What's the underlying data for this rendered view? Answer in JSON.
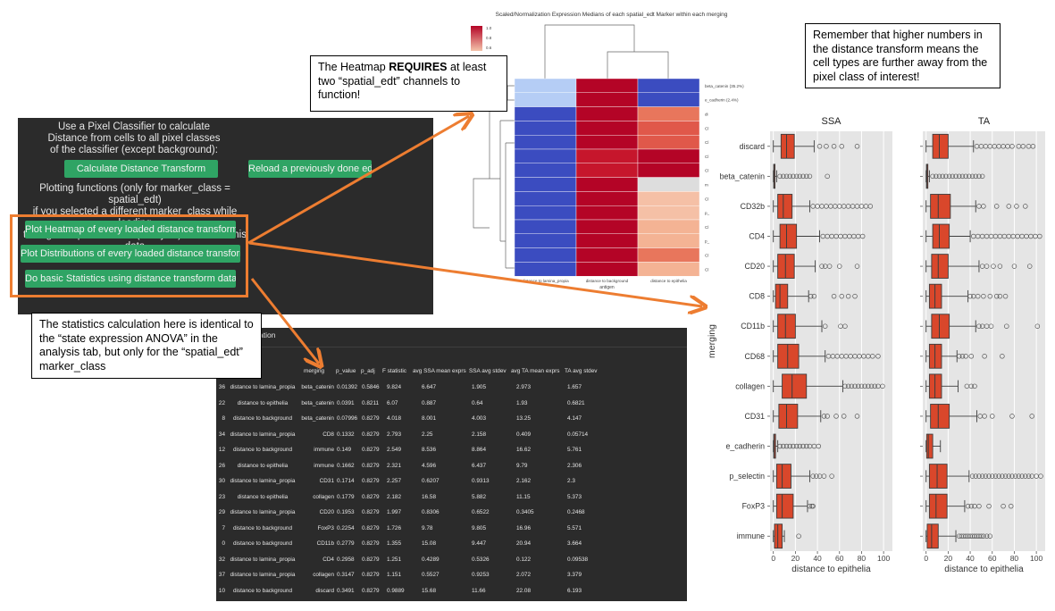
{
  "panel": {
    "intro_lines": [
      "Use a Pixel Classifier to calculate",
      "Distance from cells to all pixel classes",
      "of the classifier (except background):"
    ],
    "calc_button": "Calculate Distance Transform",
    "reload_button": "Reload a previously done edt",
    "plot_lines": [
      "Plotting functions (only for marker_class = spatial_edt)",
      "if you selected a different marker_class while loading",
      "then go the previous tab (Analysis) to access this data"
    ],
    "heatmap_button": "Plot Heatmap of every loaded distance transform",
    "distributions_button": "Plot Distributions of every loaded distance transform",
    "stats_button": "Do basic Statistics using distance transform data"
  },
  "callouts": {
    "heatmap_pre": "The Heatmap ",
    "heatmap_bold": "REQUIRES",
    "heatmap_post": " at least two “spatial_edt” channels to function!",
    "stats": "The statistics calculation here is identical to the “state expression ANOVA” in the analysis tab, but only for the “spatial_edt” marker_class",
    "remember": "Remember that higher numbers in the distance transform means the cell types are further away from the pixel class of interest!"
  },
  "heatmap": {
    "title": "Scaled/Normalization Expression Medians of each spatial_edt Marker within each merging",
    "colorbar_ticks": [
      "1.0",
      "0.8",
      "0.6"
    ],
    "columns": [
      "distance to lamina_propia",
      "distance to background",
      "distance to epithelia"
    ],
    "xlabel": "antigen",
    "row_labels": [
      "beta_catenin (35.2%)",
      "e_cadherin (2.4%)",
      "di",
      "Cl",
      "Cl",
      "Cl",
      "Cl",
      "m",
      "Cl",
      "p_",
      "Cl",
      "p_",
      "Cl",
      "Cl"
    ],
    "colors": [
      [
        "#b5cdf5",
        "#b40426",
        "#3b4cc0"
      ],
      [
        "#b5cdf5",
        "#b40426",
        "#3b4cc0"
      ],
      [
        "#3b4cc0",
        "#b40426",
        "#e8765c"
      ],
      [
        "#3b4cc0",
        "#b40426",
        "#e0584a"
      ],
      [
        "#3b4cc0",
        "#b40426",
        "#e0584a"
      ],
      [
        "#3b4cc0",
        "#c6162c",
        "#b40426"
      ],
      [
        "#3b4cc0",
        "#c6162c",
        "#b40426"
      ],
      [
        "#3b4cc0",
        "#b40426",
        "#dddddd"
      ],
      [
        "#3b4cc0",
        "#b40426",
        "#f5c0a6"
      ],
      [
        "#3b4cc0",
        "#b40426",
        "#f5c0a6"
      ],
      [
        "#3b4cc0",
        "#b40426",
        "#f4b394"
      ],
      [
        "#3b4cc0",
        "#b40426",
        "#f4b394"
      ],
      [
        "#3b4cc0",
        "#b40426",
        "#e8765c"
      ],
      [
        "#3b4cc0",
        "#b40426",
        "#f4b394"
      ]
    ]
  },
  "stats_panel": {
    "tab_label": "ation",
    "headers": [
      "n",
      "merging",
      "p_value",
      "p_adj",
      "F statistic",
      "avg SSA mean exprs",
      "SSA avg stdev",
      "avg TA mean exprs",
      "TA avg stdev"
    ],
    "rows": [
      [
        "36",
        "distance to lamina_propia",
        "beta_catenin",
        "0.01392",
        "0.5846",
        "9.824",
        "6.647",
        "1.905",
        "2.973",
        "1.657"
      ],
      [
        "22",
        "distance to epithelia",
        "beta_catenin",
        "0.0391",
        "0.8211",
        "6.07",
        "0.887",
        "0.64",
        "1.93",
        "0.6821"
      ],
      [
        "8",
        "distance to background",
        "beta_catenin",
        "0.07996",
        "0.8279",
        "4.018",
        "8.001",
        "4.003",
        "13.25",
        "4.147"
      ],
      [
        "34",
        "distance to lamina_propia",
        "CD8",
        "0.1332",
        "0.8279",
        "2.793",
        "2.25",
        "2.158",
        "0.409",
        "0.05714"
      ],
      [
        "12",
        "distance to background",
        "immune",
        "0.149",
        "0.8279",
        "2.549",
        "8.536",
        "8.864",
        "16.62",
        "5.761"
      ],
      [
        "26",
        "distance to epithelia",
        "immune",
        "0.1662",
        "0.8279",
        "2.321",
        "4.596",
        "6.437",
        "9.79",
        "2.306"
      ],
      [
        "30",
        "distance to lamina_propia",
        "CD31",
        "0.1714",
        "0.8279",
        "2.257",
        "0.6207",
        "0.9313",
        "2.162",
        "2.3"
      ],
      [
        "23",
        "distance to epithelia",
        "collagen",
        "0.1779",
        "0.8279",
        "2.182",
        "16.58",
        "5.882",
        "11.15",
        "5.373"
      ],
      [
        "29",
        "distance to lamina_propia",
        "CD20",
        "0.1953",
        "0.8279",
        "1.997",
        "0.8306",
        "0.6522",
        "0.3405",
        "0.2468"
      ],
      [
        "7",
        "distance to background",
        "FoxP3",
        "0.2254",
        "0.8279",
        "1.726",
        "9.78",
        "9.805",
        "16.96",
        "5.571"
      ],
      [
        "0",
        "distance to background",
        "CD11b",
        "0.2779",
        "0.8279",
        "1.355",
        "15.08",
        "9.447",
        "20.94",
        "3.664"
      ],
      [
        "32",
        "distance to lamina_propia",
        "CD4",
        "0.2958",
        "0.8279",
        "1.251",
        "0.4289",
        "0.5326",
        "0.122",
        "0.09538"
      ],
      [
        "37",
        "distance to lamina_propia",
        "collagen",
        "0.3147",
        "0.8279",
        "1.151",
        "0.5527",
        "0.9253",
        "2.072",
        "3.379"
      ],
      [
        "10",
        "distance to background",
        "discard",
        "0.3491",
        "0.8279",
        "0.9889",
        "15.68",
        "11.66",
        "22.08",
        "6.193"
      ]
    ]
  },
  "chart_data": {
    "type": "boxplot",
    "ylabel": "merging",
    "categories": [
      "discard",
      "beta_catenin",
      "CD32b",
      "CD4",
      "CD20",
      "CD8",
      "CD11b",
      "CD68",
      "collagen",
      "CD31",
      "e_cadherin",
      "p_selectin",
      "FoxP3",
      "immune"
    ],
    "xticks": [
      0,
      20,
      40,
      60,
      80,
      100
    ],
    "xlim": [
      -3,
      108
    ],
    "grid": true,
    "panels": [
      {
        "title": "SSA",
        "xlabel": "distance to epithelia",
        "boxes": [
          {
            "lw": 0,
            "q1": 7,
            "median": 12,
            "q3": 19,
            "uw": 37,
            "outliers": [
              42,
              48,
              55,
              62,
              76
            ]
          },
          {
            "lw": 0,
            "q1": 0.3,
            "median": 0.6,
            "q3": 1.5,
            "uw": 3,
            "outliers": [
              6,
              9,
              12,
              15,
              18,
              21,
              24,
              27,
              30,
              33,
              49
            ]
          },
          {
            "lw": 0,
            "q1": 4,
            "median": 9,
            "q3": 17,
            "uw": 33,
            "outliers": [
              36,
              40,
              44,
              48,
              52,
              56,
              60,
              64,
              68,
              72,
              76,
              80,
              84,
              88
            ]
          },
          {
            "lw": 0,
            "q1": 6,
            "median": 12,
            "q3": 21,
            "uw": 42,
            "outliers": [
              45,
              49,
              53,
              57,
              61,
              65,
              69,
              73,
              77,
              81
            ]
          },
          {
            "lw": 0,
            "q1": 4,
            "median": 11,
            "q3": 19,
            "uw": 38,
            "outliers": [
              44,
              47,
              51,
              60,
              76
            ]
          },
          {
            "lw": 0,
            "q1": 2,
            "median": 6,
            "q3": 13,
            "uw": 32,
            "outliers": [
              34,
              37,
              55,
              62,
              68,
              74
            ]
          },
          {
            "lw": 0,
            "q1": 4,
            "median": 11,
            "q3": 20,
            "uw": 44,
            "outliers": [
              47,
              61,
              65
            ]
          },
          {
            "lw": 0,
            "q1": 4,
            "median": 13,
            "q3": 23,
            "uw": 47,
            "outliers": [
              50,
              54,
              58,
              62,
              66,
              70,
              74,
              78,
              82,
              86,
              90,
              95
            ]
          },
          {
            "lw": 0,
            "q1": 8,
            "median": 17,
            "q3": 30,
            "uw": 63,
            "outliers": [
              65,
              68,
              71,
              74,
              77,
              80,
              83,
              86,
              89,
              92,
              95,
              99
            ]
          },
          {
            "lw": 0,
            "q1": 5,
            "median": 12,
            "q3": 22,
            "uw": 43,
            "outliers": [
              46,
              49,
              57,
              64,
              76
            ]
          },
          {
            "lw": 0,
            "q1": 0.3,
            "median": 0.8,
            "q3": 2,
            "uw": 4,
            "outliers": [
              6,
              9,
              12,
              15,
              18,
              21,
              24,
              27,
              30,
              33,
              37,
              41
            ]
          },
          {
            "lw": 0,
            "q1": 3,
            "median": 8,
            "q3": 16,
            "uw": 33,
            "outliers": [
              36,
              39,
              42,
              46,
              53
            ]
          },
          {
            "lw": 0,
            "q1": 3,
            "median": 8,
            "q3": 18,
            "uw": 31,
            "outliers": [
              33,
              35,
              36
            ]
          },
          {
            "lw": 0,
            "q1": 1,
            "median": 4,
            "q3": 8,
            "uw": 10,
            "outliers": [
              23
            ]
          }
        ]
      },
      {
        "title": "TA",
        "xlabel": "distance to epithelia",
        "boxes": [
          {
            "lw": 0,
            "q1": 6,
            "median": 12,
            "q3": 20,
            "uw": 43,
            "outliers": [
              46,
              50,
              54,
              58,
              62,
              66,
              70,
              74,
              78,
              84,
              88,
              93,
              97
            ]
          },
          {
            "lw": 0,
            "q1": 0.3,
            "median": 0.7,
            "q3": 1.6,
            "uw": 3,
            "outliers": [
              6,
              9,
              12,
              15,
              18,
              21,
              24,
              27,
              30,
              33,
              36,
              39,
              42,
              45,
              48,
              51
            ]
          },
          {
            "lw": 0,
            "q1": 4,
            "median": 11,
            "q3": 22,
            "uw": 45,
            "outliers": [
              48,
              52,
              64,
              75,
              82,
              90
            ]
          },
          {
            "lw": 0,
            "q1": 6,
            "median": 12,
            "q3": 21,
            "uw": 40,
            "outliers": [
              43,
              47,
              51,
              55,
              59,
              63,
              67,
              71,
              75,
              79,
              83,
              87,
              91,
              95,
              99,
              103
            ]
          },
          {
            "lw": 0,
            "q1": 5,
            "median": 11,
            "q3": 20,
            "uw": 48,
            "outliers": [
              51,
              55,
              61,
              67,
              80,
              94
            ]
          },
          {
            "lw": 0,
            "q1": 3,
            "median": 8,
            "q3": 14,
            "uw": 38,
            "outliers": [
              40,
              43,
              47,
              52,
              58,
              64,
              67,
              72
            ]
          },
          {
            "lw": 0,
            "q1": 5,
            "median": 12,
            "q3": 21,
            "uw": 45,
            "outliers": [
              48,
              51,
              55,
              59,
              73,
              101
            ]
          },
          {
            "lw": 0,
            "q1": 3,
            "median": 8,
            "q3": 14,
            "uw": 28,
            "outliers": [
              30,
              33,
              36,
              41,
              53,
              69
            ]
          },
          {
            "lw": 0,
            "q1": 3,
            "median": 8,
            "q3": 14,
            "uw": 29,
            "outliers": [
              37,
              41,
              44
            ]
          },
          {
            "lw": 0,
            "q1": 4,
            "median": 11,
            "q3": 21,
            "uw": 46,
            "outliers": [
              49,
              53,
              60,
              78,
              96
            ]
          },
          {
            "lw": 0,
            "q1": 0.5,
            "median": 2,
            "q3": 6,
            "uw": 13,
            "outliers": []
          },
          {
            "lw": 0,
            "q1": 3,
            "median": 10,
            "q3": 19,
            "uw": 39,
            "outliers": [
              42,
              45,
              48,
              51,
              54,
              57,
              60,
              63,
              66,
              69,
              72,
              75,
              78,
              81,
              84,
              87,
              90,
              93,
              96,
              100,
              104
            ]
          },
          {
            "lw": 0,
            "q1": 3,
            "median": 9,
            "q3": 19,
            "uw": 35,
            "outliers": [
              38,
              41,
              44,
              48,
              57,
              70,
              77
            ]
          },
          {
            "lw": 0,
            "q1": 1,
            "median": 5,
            "q3": 11,
            "uw": 27,
            "outliers": [
              30,
              32,
              34,
              36,
              38,
              40,
              42,
              44,
              46,
              48,
              50,
              52,
              55,
              58
            ]
          }
        ]
      }
    ]
  },
  "colors": {
    "panel_bg": "#2b2b2b",
    "button_green": "#2fa464",
    "arrow_orange": "#ed7d31",
    "box_red": "#d9472b",
    "plot_bg": "#e5e5e5"
  }
}
